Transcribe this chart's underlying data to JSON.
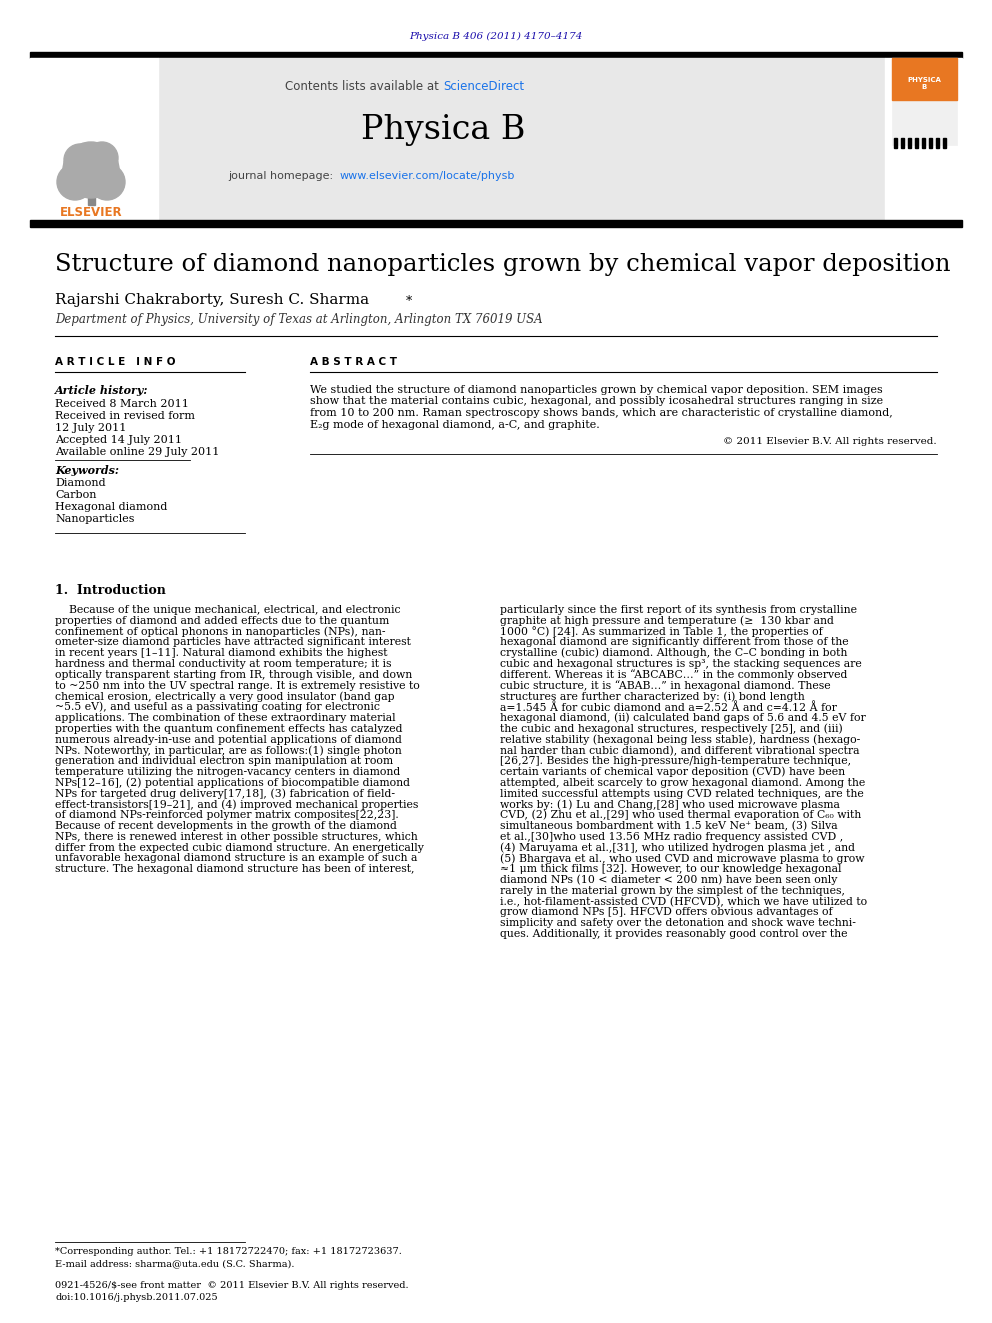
{
  "journal_ref": "Physica B 406 (2011) 4170–4174",
  "journal_ref_color": "#1a0dab",
  "sciencedirect_color": "#1a73e8",
  "journal_name": "Physica B",
  "homepage_color": "#1a73e8",
  "title": "Structure of diamond nanoparticles grown by chemical vapor deposition",
  "affiliation": "Department of Physics, University of Texas at Arlington, Arlington TX 76019 USA",
  "article_info_header": "A R T I C L E   I N F O",
  "abstract_header": "A B S T R A C T",
  "article_history_label": "Article history:",
  "received": "Received 8 March 2011",
  "received_revised": "Received in revised form",
  "revised_date": "12 July 2011",
  "accepted": "Accepted 14 July 2011",
  "available": "Available online 29 July 2011",
  "keywords_label": "Keywords:",
  "keywords": [
    "Diamond",
    "Carbon",
    "Hexagonal diamond",
    "Nanoparticles"
  ],
  "copyright": "© 2011 Elsevier B.V. All rights reserved.",
  "footnote_star": "*Corresponding author. Tel.: +1 18172722470; fax: +1 18172723637.",
  "footnote_email": "E-mail address: sharma@uta.edu (S.C. Sharma).",
  "issn_line": "0921-4526/$-see front matter  © 2011 Elsevier B.V. All rights reserved.",
  "doi_line": "doi:10.1016/j.physb.2011.07.025",
  "elsevier_orange": "#e87722",
  "header_blue": "#1a0dab",
  "link_blue": "#1a73e8",
  "abstract_lines": [
    "We studied the structure of diamond nanoparticles grown by chemical vapor deposition. SEM images",
    "show that the material contains cubic, hexagonal, and possibly icosahedral structures ranging in size",
    "from 10 to 200 nm. Raman spectroscopy shows bands, which are characteristic of crystalline diamond,",
    "E₂g mode of hexagonal diamond, a-C, and graphite."
  ],
  "left_col_lines": [
    "    Because of the unique mechanical, electrical, and electronic",
    "properties of diamond and added effects due to the quantum",
    "confinement of optical phonons in nanoparticles (NPs), nan-",
    "ometer-size diamond particles have attracted significant interest",
    "in recent years [1–11]. Natural diamond exhibits the highest",
    "hardness and thermal conductivity at room temperature; it is",
    "optically transparent starting from IR, through visible, and down",
    "to ~250 nm into the UV spectral range. It is extremely resistive to",
    "chemical erosion, electrically a very good insulator (band gap",
    "~5.5 eV), and useful as a passivating coating for electronic",
    "applications. The combination of these extraordinary material",
    "properties with the quantum confinement effects has catalyzed",
    "numerous already-in-use and potential applications of diamond",
    "NPs. Noteworthy, in particular, are as follows:(1) single photon",
    "generation and individual electron spin manipulation at room",
    "temperature utilizing the nitrogen-vacancy centers in diamond",
    "NPs[12–16], (2) potential applications of biocompatible diamond",
    "NPs for targeted drug delivery[17,18], (3) fabrication of field-",
    "effect-transistors[19–21], and (4) improved mechanical properties",
    "of diamond NPs-reinforced polymer matrix composites[22,23].",
    "Because of recent developments in the growth of the diamond",
    "NPs, there is renewed interest in other possible structures, which",
    "differ from the expected cubic diamond structure. An energetically",
    "unfavorable hexagonal diamond structure is an example of such a",
    "structure. The hexagonal diamond structure has been of interest,"
  ],
  "right_col_lines": [
    "particularly since the first report of its synthesis from crystalline",
    "graphite at high pressure and temperature (≥  130 kbar and",
    "1000 °C) [24]. As summarized in Table 1, the properties of",
    "hexagonal diamond are significantly different from those of the",
    "crystalline (cubic) diamond. Although, the C–C bonding in both",
    "cubic and hexagonal structures is sp³, the stacking sequences are",
    "different. Whereas it is “ABCABC…” in the commonly observed",
    "cubic structure, it is “ABAB…” in hexagonal diamond. These",
    "structures are further characterized by: (i) bond length",
    "a=1.545 Å for cubic diamond and a=2.52 Å and c=4.12 Å for",
    "hexagonal diamond, (ii) calculated band gaps of 5.6 and 4.5 eV for",
    "the cubic and hexagonal structures, respectively [25], and (iii)",
    "relative stability (hexagonal being less stable), hardness (hexago-",
    "nal harder than cubic diamond), and different vibrational spectra",
    "[26,27]. Besides the high-pressure/high-temperature technique,",
    "certain variants of chemical vapor deposition (CVD) have been",
    "attempted, albeit scarcely to grow hexagonal diamond. Among the",
    "limited successful attempts using CVD related techniques, are the",
    "works by: (1) Lu and Chang,[28] who used microwave plasma",
    "CVD, (2) Zhu et al.,[29] who used thermal evaporation of C₆₀ with",
    "simultaneous bombardment with 1.5 keV Ne⁺ beam, (3) Silva",
    "et al.,[30]who used 13.56 MHz radio frequency assisted CVD ,",
    "(4) Maruyama et al.,[31], who utilized hydrogen plasma jet , and",
    "(5) Bhargava et al., who used CVD and microwave plasma to grow",
    "≈1 μm thick films [32]. However, to our knowledge hexagonal",
    "diamond NPs (10 < diameter < 200 nm) have been seen only",
    "rarely in the material grown by the simplest of the techniques,",
    "i.e., hot-filament-assisted CVD (HFCVD), which we have utilized to",
    "grow diamond NPs [5]. HFCVD offers obvious advantages of",
    "simplicity and safety over the detonation and shock wave techni-",
    "ques. Additionally, it provides reasonably good control over the"
  ]
}
